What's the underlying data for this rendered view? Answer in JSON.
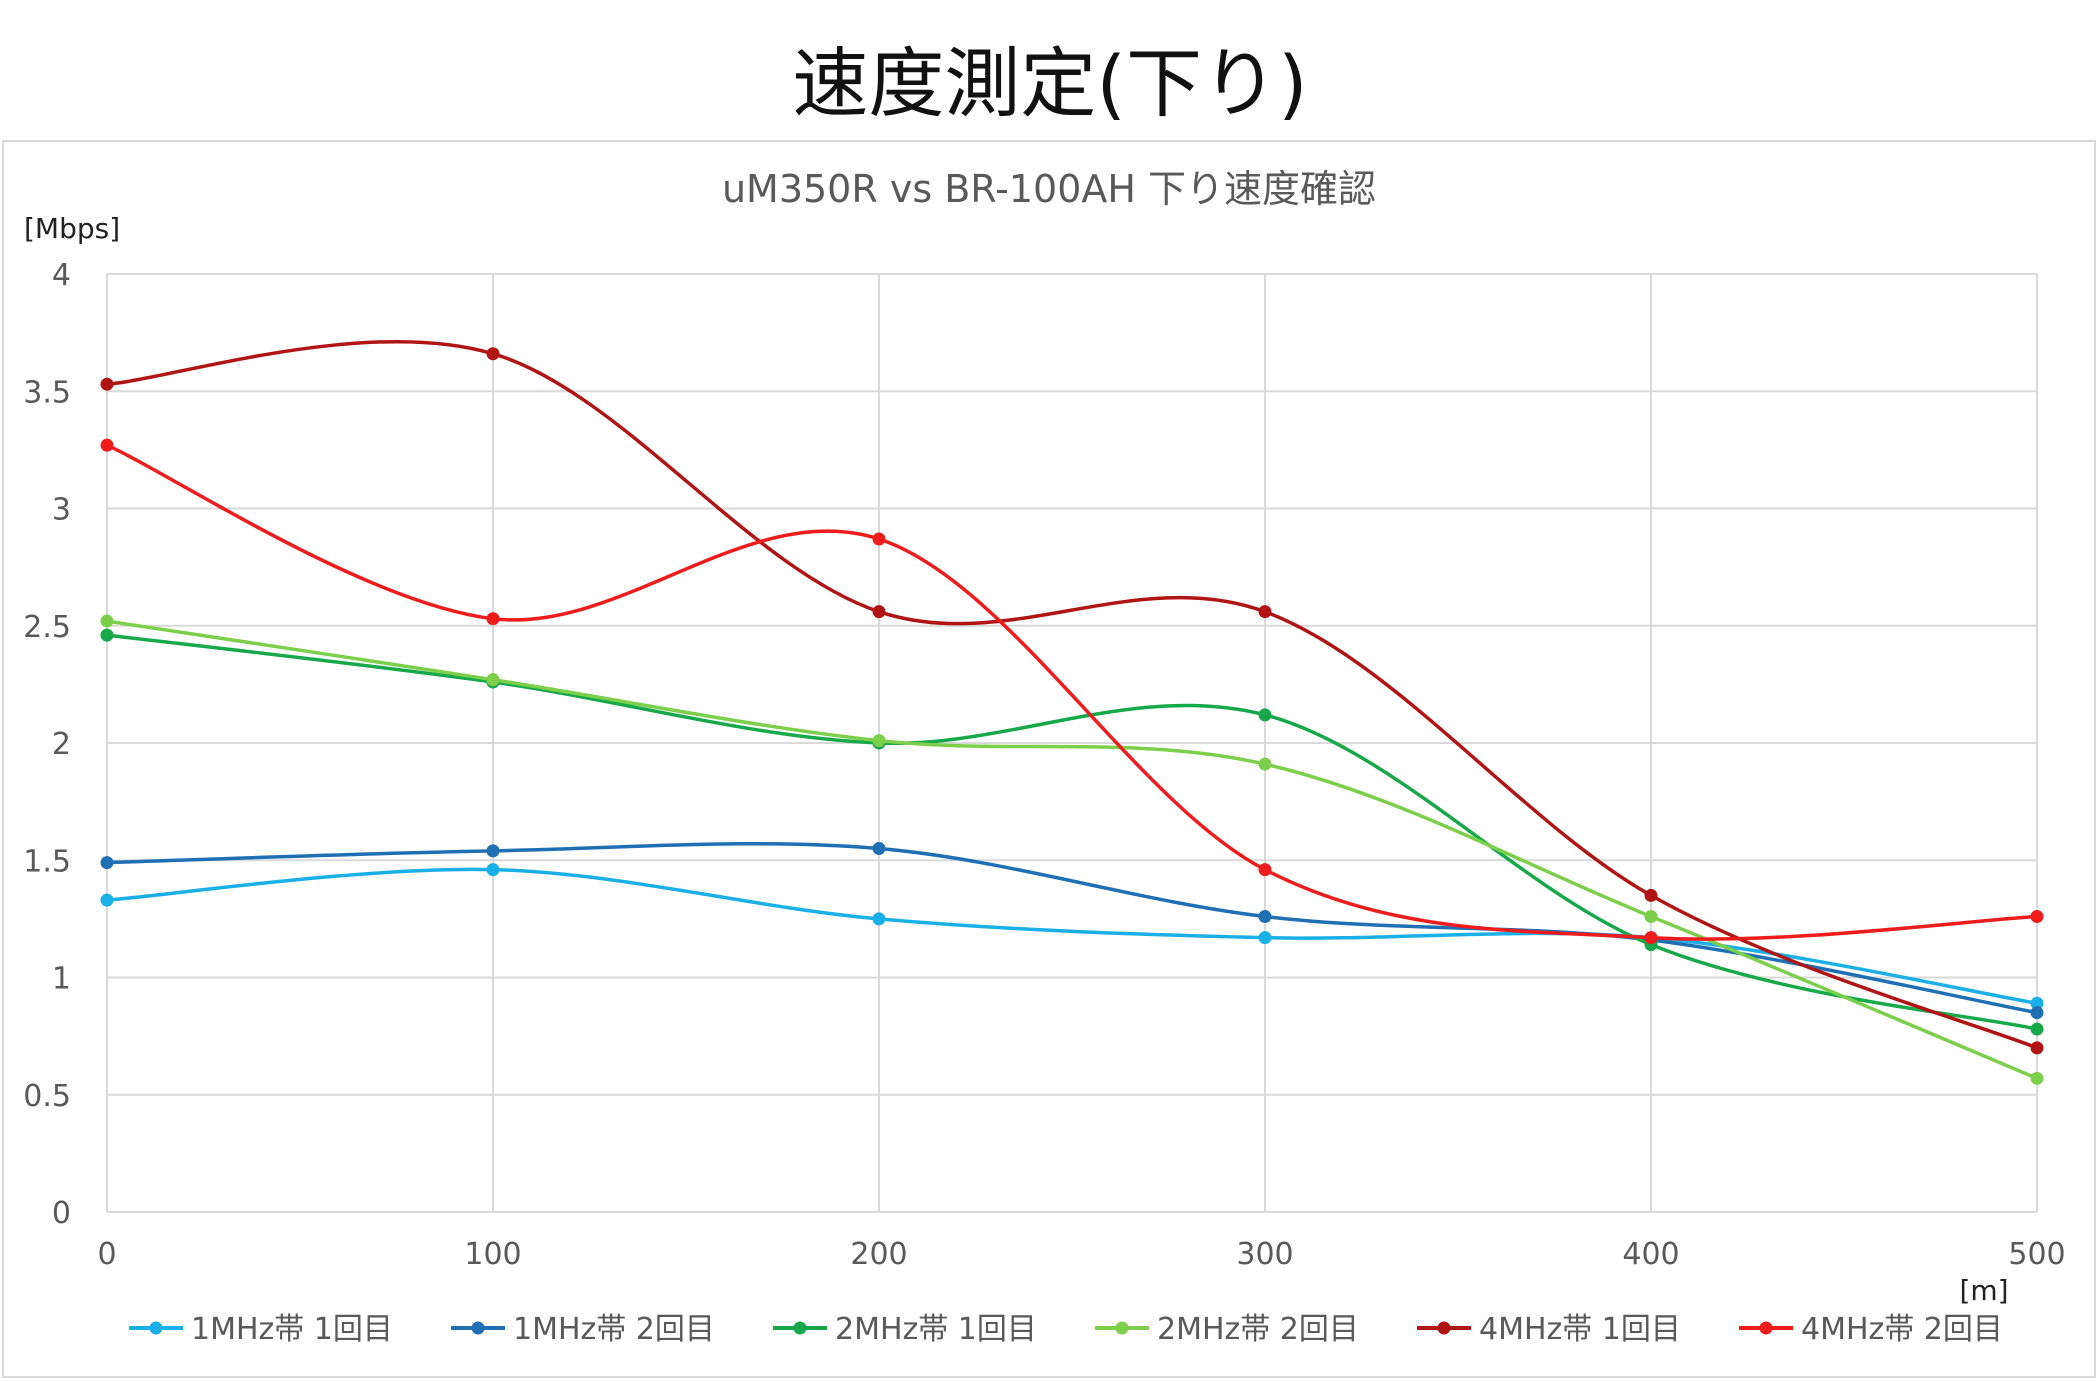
{
  "page_title": "速度測定(下り)",
  "chart_data": {
    "type": "line",
    "title": "uM350R vs BR-100AH  下り速度確認",
    "ylabel": "[Mbps]",
    "xlabel": "[m]",
    "x": [
      0,
      100,
      200,
      300,
      400,
      500
    ],
    "ylim": [
      0,
      4
    ],
    "xlim": [
      0,
      500
    ],
    "yticks": [
      "0",
      "0.5",
      "1",
      "1.5",
      "2",
      "2.5",
      "3",
      "3.5",
      "4"
    ],
    "xticks": [
      "0",
      "100",
      "200",
      "300",
      "400",
      "500"
    ],
    "grid": true,
    "smooth": true,
    "legend_position": "bottom",
    "series": [
      {
        "name": "1MHz帯 1回目",
        "color": "#1aafe6",
        "values": [
          1.33,
          1.46,
          1.25,
          1.17,
          1.17,
          0.89
        ]
      },
      {
        "name": "1MHz帯 2回目",
        "color": "#1f6fb5",
        "values": [
          1.49,
          1.54,
          1.55,
          1.26,
          1.16,
          0.85
        ]
      },
      {
        "name": "2MHz帯 1回目",
        "color": "#17a84a",
        "values": [
          2.46,
          2.26,
          2.0,
          2.12,
          1.14,
          0.78
        ]
      },
      {
        "name": "2MHz帯 2回目",
        "color": "#7ccf4a",
        "values": [
          2.52,
          2.27,
          2.01,
          1.91,
          1.26,
          0.57
        ]
      },
      {
        "name": "4MHz帯 1回目",
        "color": "#b01414",
        "values": [
          3.53,
          3.66,
          2.56,
          2.56,
          1.35,
          0.7
        ]
      },
      {
        "name": "4MHz帯 2回目",
        "color": "#ee1c1c",
        "values": [
          3.27,
          2.53,
          2.87,
          1.46,
          1.17,
          1.26
        ]
      }
    ]
  }
}
